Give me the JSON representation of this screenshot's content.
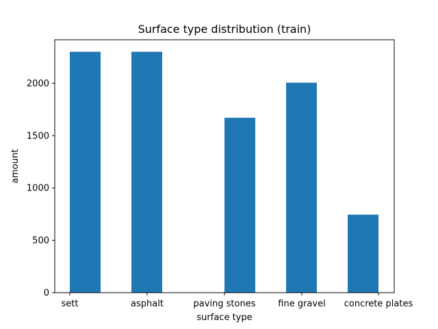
{
  "chart_data": {
    "type": "bar",
    "title": "Surface type distribution (train)",
    "xlabel": "surface type",
    "ylabel": "amount",
    "categories": [
      "sett",
      "asphalt",
      "paving stones",
      "fine gravel",
      "concrete plates"
    ],
    "values": [
      2300,
      2300,
      1670,
      2005,
      745
    ],
    "ylim": [
      0,
      2415
    ],
    "yticks": [
      0,
      500,
      1000,
      1500,
      2000
    ],
    "grid": false,
    "legend": "none",
    "bar_color": "#1f77b4"
  }
}
